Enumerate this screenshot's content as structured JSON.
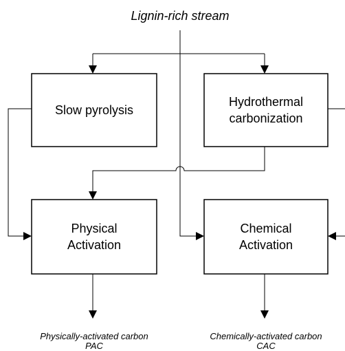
{
  "title": "Lignin-rich stream",
  "nodes": [
    {
      "label": [
        "Slow pyrolysis"
      ]
    },
    {
      "label": [
        "Hydrothermal",
        "carbonization"
      ]
    },
    {
      "label": [
        "Physical",
        "Activation"
      ]
    },
    {
      "label": [
        "Chemical",
        "Activation"
      ]
    }
  ],
  "outputs": [
    {
      "label": [
        "Physically-activated carbon",
        "PAC"
      ]
    },
    {
      "label": [
        "Chemically-activated carbon",
        "CAC"
      ]
    }
  ]
}
